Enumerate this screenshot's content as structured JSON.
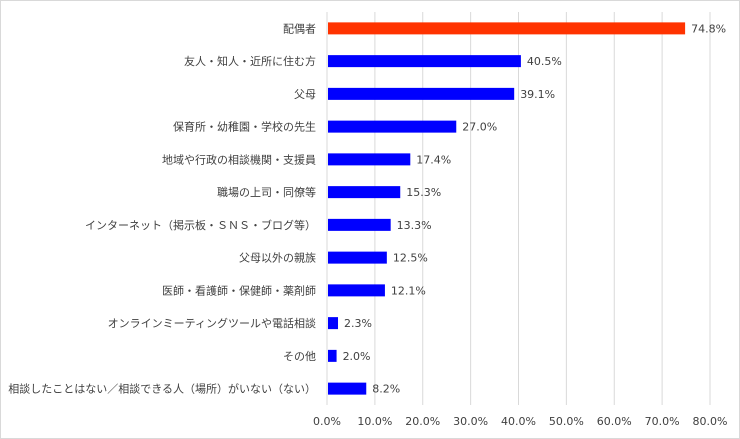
{
  "chart_data": {
    "type": "bar",
    "orientation": "horizontal",
    "categories": [
      "配偶者",
      "友人・知人・近所に住む方",
      "父母",
      "保育所・幼稚園・学校の先生",
      "地域や行政の相談機関・支援員",
      "職場の上司・同僚等",
      "インターネット（掲示板・ＳＮＳ・ブログ等）",
      "父母以外の親族",
      "医師・看護師・保健師・薬剤師",
      "オンラインミーティングツールや電話相談",
      "その他",
      "相談したことはない／相談できる人（場所）がいない（ない）"
    ],
    "values": [
      74.8,
      40.5,
      39.1,
      27.0,
      17.4,
      15.3,
      13.3,
      12.5,
      12.1,
      2.3,
      2.0,
      8.2
    ],
    "data_labels": [
      "74.8%",
      "40.5%",
      "39.1%",
      "27.0%",
      "17.4%",
      "15.3%",
      "13.3%",
      "12.5%",
      "12.1%",
      "2.3%",
      "2.0%",
      "8.2%"
    ],
    "bar_colors": [
      "#FF3300",
      "#0000FF",
      "#0000FF",
      "#0000FF",
      "#0000FF",
      "#0000FF",
      "#0000FF",
      "#0000FF",
      "#0000FF",
      "#0000FF",
      "#0000FF",
      "#0000FF"
    ],
    "xlim": [
      0,
      80
    ],
    "x_ticks": [
      0,
      10,
      20,
      30,
      40,
      50,
      60,
      70,
      80
    ],
    "x_tick_labels": [
      "0.0%",
      "10.0%",
      "20.0%",
      "30.0%",
      "40.0%",
      "50.0%",
      "60.0%",
      "70.0%",
      "80.0%"
    ],
    "grid": true,
    "gridline_color": "#d9d9d9",
    "legend": "none"
  }
}
